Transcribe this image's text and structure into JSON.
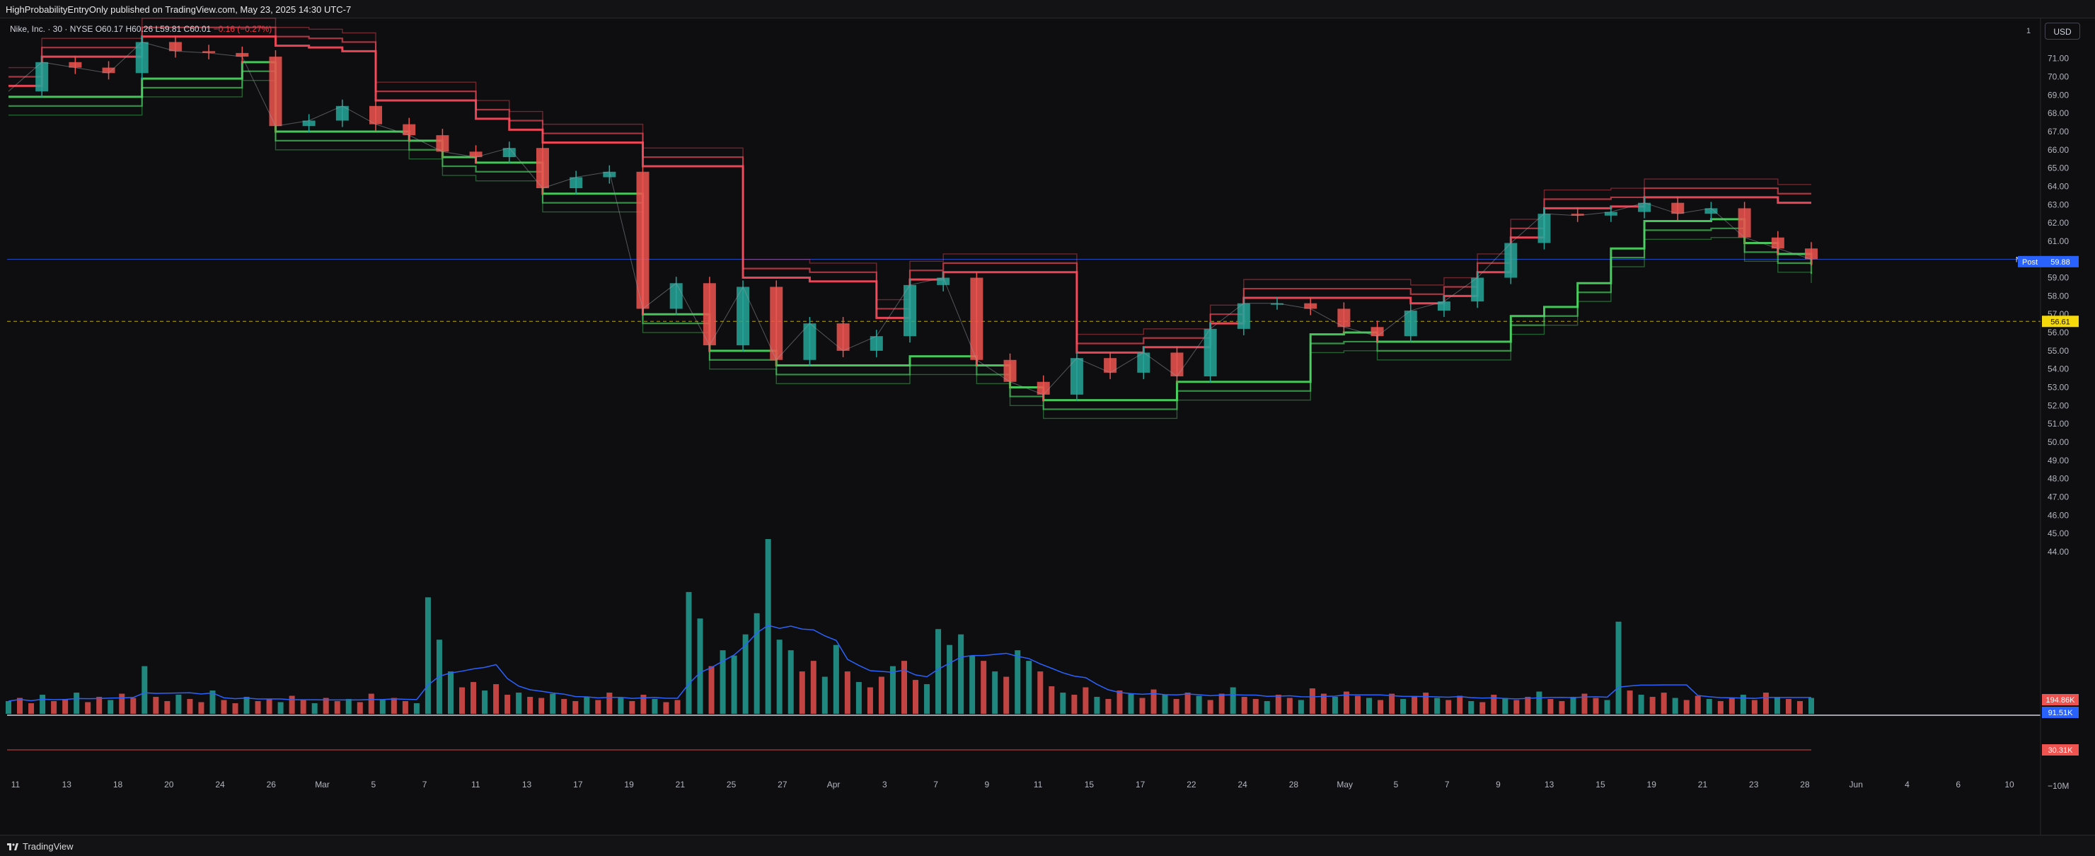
{
  "header": {
    "publish_text": "HighProbabilityEntryOnly published on TradingView.com, May 23, 2025 14:30 UTC-7"
  },
  "legend": {
    "symbol": "Nike, Inc. · 30 · NYSE",
    "o": "O60.17",
    "h": "H60.26",
    "l": "L59.81",
    "c": "C60.01",
    "chg": "−0.16 (−0.27%)"
  },
  "toolbar": {
    "currency": "USD",
    "scale_marker": "1"
  },
  "footer": {
    "brand": "TradingView"
  },
  "colors": {
    "up": "#26a69a",
    "down": "#ef5350",
    "bull_band": "#4cd964",
    "bear_band": "#ff4d5e",
    "volume_ma": "#2962ff",
    "accent_yellow": "#f5d90a"
  },
  "chart_data": {
    "type": "line",
    "symbol": "NKE",
    "x_ticks": [
      "11",
      "13",
      "18",
      "20",
      "24",
      "26",
      "Mar",
      "5",
      "7",
      "11",
      "13",
      "17",
      "19",
      "21",
      "25",
      "27",
      "Apr",
      "3",
      "7",
      "9",
      "11",
      "15",
      "17",
      "22",
      "24",
      "28",
      "May",
      "5",
      "7",
      "9",
      "13",
      "15",
      "19",
      "21",
      "23",
      "28",
      "Jun",
      "4",
      "6",
      "10"
    ],
    "y_ticks": [
      "71.00",
      "70.00",
      "69.00",
      "68.00",
      "67.00",
      "66.00",
      "65.00",
      "64.00",
      "63.00",
      "62.00",
      "61.00",
      "59.00",
      "58.00",
      "57.00",
      "56.00",
      "55.00",
      "54.00",
      "53.00",
      "52.00",
      "51.00",
      "50.00",
      "49.00",
      "48.00",
      "47.00",
      "46.00",
      "45.00",
      "44.00"
    ],
    "ylim": [
      43.3,
      71.8
    ],
    "series": [
      {
        "values": [
          69.2,
          70.8,
          70.5,
          70.2,
          71.9,
          71.4,
          71.3,
          71.1,
          67.3,
          67.6,
          68.4,
          67.4,
          66.8,
          65.9,
          65.6,
          66.1,
          63.9,
          64.5,
          64.8,
          57.3,
          58.7,
          55.3,
          58.5,
          54.5,
          56.5,
          55.0,
          55.8,
          58.6,
          59.0,
          54.5,
          53.3,
          52.6,
          54.6,
          53.8,
          54.9,
          53.6,
          56.2,
          57.6,
          57.6,
          57.3,
          56.3,
          55.8,
          57.2,
          57.7,
          59.0,
          60.9,
          62.5,
          62.4,
          62.6,
          63.1,
          62.5,
          62.8,
          61.2,
          60.6,
          60.01
        ]
      }
    ],
    "last_price": {
      "symbol": "NKE",
      "value": "60.01"
    },
    "post_price": {
      "label": "Post",
      "value": "59.88"
    },
    "level_line": {
      "value": "56.61"
    },
    "volume": {
      "values": [
        1.2,
        1.5,
        1.0,
        1.8,
        1.2,
        1.4,
        2.0,
        1.1,
        1.6,
        1.3,
        1.9,
        1.5,
        4.5,
        1.6,
        1.2,
        1.8,
        1.4,
        1.1,
        2.2,
        1.3,
        1.0,
        1.6,
        1.2,
        1.4,
        1.1,
        1.7,
        1.3,
        1.0,
        1.5,
        1.2,
        1.4,
        1.1,
        1.9,
        1.3,
        1.5,
        1.2,
        1.0,
        11.0,
        7.0,
        4.0,
        2.5,
        3.0,
        2.2,
        2.8,
        1.8,
        2.0,
        1.6,
        1.5,
        1.9,
        1.4,
        1.2,
        1.6,
        1.3,
        2.0,
        1.5,
        1.2,
        1.8,
        1.4,
        1.1,
        1.3,
        11.5,
        9.0,
        4.5,
        6.0,
        5.5,
        7.5,
        9.5,
        16.5,
        7.0,
        6.0,
        4.0,
        5.0,
        3.5,
        6.5,
        4.0,
        3.0,
        2.5,
        3.5,
        4.5,
        5.0,
        3.2,
        2.8,
        8.0,
        6.5,
        7.5,
        5.5,
        5.0,
        4.0,
        3.5,
        6.0,
        5.0,
        4.0,
        2.6,
        2.0,
        1.8,
        2.5,
        1.6,
        1.4,
        2.2,
        1.9,
        1.5,
        2.3,
        1.8,
        1.4,
        2.0,
        1.7,
        1.3,
        1.9,
        2.5,
        1.6,
        1.4,
        1.2,
        1.8,
        1.5,
        1.3,
        2.4,
        1.9,
        1.6,
        2.1,
        1.7,
        1.5,
        1.3,
        1.9,
        1.4,
        1.6,
        2.0,
        1.5,
        1.3,
        1.7,
        1.2,
        1.1,
        1.8,
        1.5,
        1.3,
        1.6,
        2.1,
        1.4,
        1.2,
        1.6,
        1.9,
        1.5,
        1.3,
        8.7,
        2.2,
        1.8,
        1.6,
        2.0,
        1.5,
        1.3,
        1.7,
        1.4,
        1.2,
        1.5,
        1.8,
        1.3,
        2.0,
        1.6,
        1.4,
        1.2,
        1.5
      ],
      "ma_label": "194.86K",
      "ma2_label": "91.51K"
    },
    "oscillator": {
      "label": "30.31K",
      "tick": "−10M"
    }
  }
}
